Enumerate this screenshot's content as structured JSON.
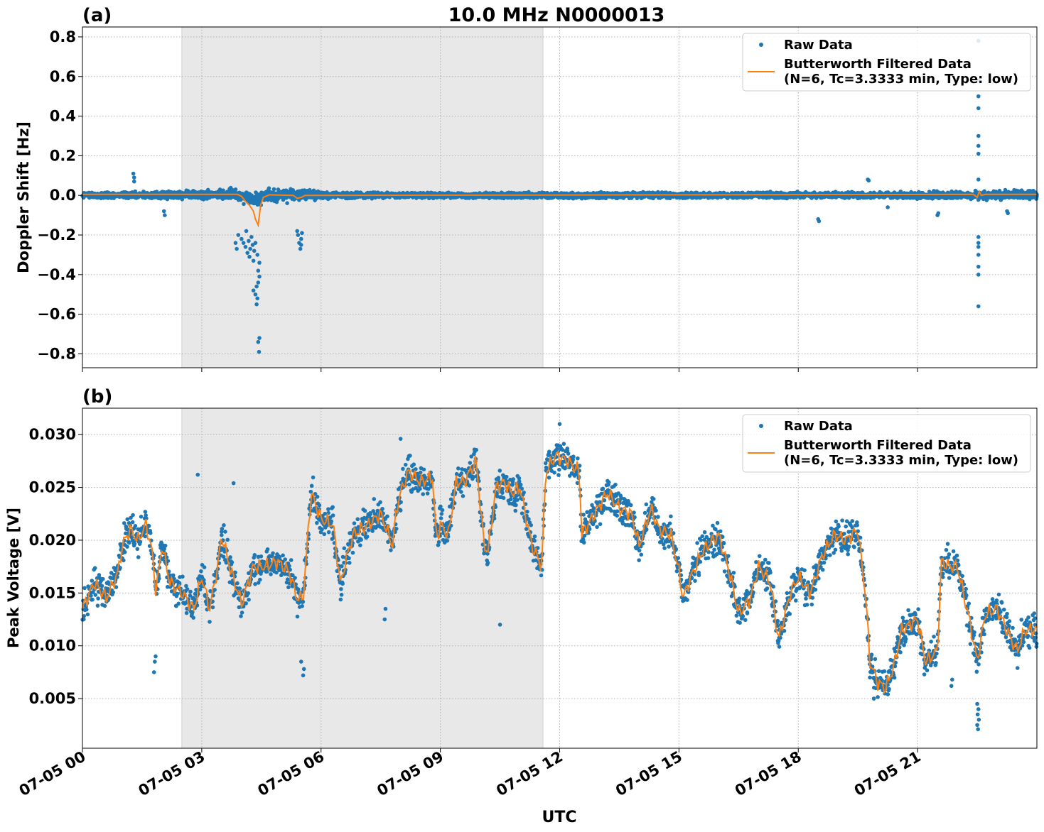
{
  "title": "10.0 MHz N0000013",
  "xlabel": "UTC",
  "x_ticks": [
    "07-05 00",
    "07-05 03",
    "07-05 06",
    "07-05 09",
    "07-05 12",
    "07-05 15",
    "07-05 18",
    "07-05 21"
  ],
  "x_tick_hours": [
    0,
    3,
    6,
    9,
    12,
    15,
    18,
    21
  ],
  "shaded_interval_hours": [
    2.5,
    11.58
  ],
  "colors": {
    "raw": "#1f77b4",
    "filtered": "#ff7f0e",
    "shade": "#e8e8e8",
    "grid": "#b0b0b0"
  },
  "legend": {
    "raw_label": "Raw Data",
    "filtered_label_line1": "Butterworth Filtered Data",
    "filtered_label_line2": "(N=6, Tc=3.3333 min, Type: low)"
  },
  "chart_data": [
    {
      "panel": "(a)",
      "type": "scatter",
      "ylabel": "Doppler Shift [Hz]",
      "xlim_hours": [
        0,
        24
      ],
      "ylim": [
        -0.87,
        0.85
      ],
      "y_ticks": [
        "0.8",
        "0.6",
        "0.4",
        "0.2",
        "0.0",
        "−0.2",
        "−0.4",
        "−0.6",
        "−0.8"
      ],
      "y_tick_values": [
        0.8,
        0.6,
        0.4,
        0.2,
        0.0,
        -0.2,
        -0.4,
        -0.6,
        -0.8
      ],
      "legend_placement": "upper-right",
      "grid": true,
      "band_envelope": {
        "x_hours": [
          0,
          1,
          2,
          2.5,
          3,
          3.5,
          4,
          4.5,
          5,
          5.5,
          6,
          7,
          8,
          9,
          10,
          11,
          11.5,
          12,
          13,
          14,
          15,
          16,
          17,
          18,
          19,
          20,
          21,
          22,
          23,
          24
        ],
        "upper": [
          0.02,
          0.02,
          0.025,
          0.04,
          0.04,
          0.04,
          0.045,
          0.05,
          0.05,
          0.05,
          0.03,
          0.02,
          0.02,
          0.015,
          0.015,
          0.02,
          0.02,
          0.02,
          0.02,
          0.02,
          0.015,
          0.015,
          0.02,
          0.02,
          0.02,
          0.02,
          0.025,
          0.03,
          0.03,
          0.04
        ],
        "lower": [
          -0.02,
          -0.02,
          -0.025,
          -0.03,
          -0.035,
          -0.035,
          -0.04,
          -0.05,
          -0.05,
          -0.04,
          -0.025,
          -0.02,
          -0.015,
          -0.015,
          -0.015,
          -0.02,
          -0.02,
          -0.02,
          -0.02,
          -0.015,
          -0.015,
          -0.015,
          -0.02,
          -0.02,
          -0.02,
          -0.02,
          -0.025,
          -0.03,
          -0.03,
          -0.03
        ]
      },
      "outliers": [
        {
          "x": 1.28,
          "y": 0.11
        },
        {
          "x": 1.3,
          "y": 0.09
        },
        {
          "x": 1.3,
          "y": 0.07
        },
        {
          "x": 2.05,
          "y": -0.08
        },
        {
          "x": 2.07,
          "y": -0.1
        },
        {
          "x": 3.85,
          "y": -0.24
        },
        {
          "x": 3.88,
          "y": -0.27
        },
        {
          "x": 3.92,
          "y": -0.2
        },
        {
          "x": 4.0,
          "y": -0.22
        },
        {
          "x": 4.05,
          "y": -0.24
        },
        {
          "x": 4.1,
          "y": -0.26
        },
        {
          "x": 4.12,
          "y": -0.18
        },
        {
          "x": 4.15,
          "y": -0.29
        },
        {
          "x": 4.18,
          "y": -0.23
        },
        {
          "x": 4.2,
          "y": -0.31
        },
        {
          "x": 4.22,
          "y": -0.27
        },
        {
          "x": 4.25,
          "y": -0.21
        },
        {
          "x": 4.28,
          "y": -0.25
        },
        {
          "x": 4.3,
          "y": -0.33
        },
        {
          "x": 4.32,
          "y": -0.28
        },
        {
          "x": 4.35,
          "y": -0.24
        },
        {
          "x": 4.3,
          "y": -0.48
        },
        {
          "x": 4.35,
          "y": -0.5
        },
        {
          "x": 4.38,
          "y": -0.46
        },
        {
          "x": 4.4,
          "y": -0.52
        },
        {
          "x": 4.42,
          "y": -0.44
        },
        {
          "x": 4.42,
          "y": -0.38
        },
        {
          "x": 4.45,
          "y": -0.41
        },
        {
          "x": 4.45,
          "y": -0.72
        },
        {
          "x": 4.42,
          "y": -0.74
        },
        {
          "x": 4.44,
          "y": -0.79
        },
        {
          "x": 4.38,
          "y": -0.55
        },
        {
          "x": 4.4,
          "y": -0.3
        },
        {
          "x": 4.45,
          "y": -0.34
        },
        {
          "x": 5.4,
          "y": -0.18
        },
        {
          "x": 5.42,
          "y": -0.2
        },
        {
          "x": 5.45,
          "y": -0.24
        },
        {
          "x": 5.5,
          "y": -0.22
        },
        {
          "x": 5.48,
          "y": -0.27
        },
        {
          "x": 5.52,
          "y": -0.19
        },
        {
          "x": 5.5,
          "y": -0.25
        },
        {
          "x": 18.5,
          "y": -0.12
        },
        {
          "x": 18.52,
          "y": -0.13
        },
        {
          "x": 19.75,
          "y": 0.08
        },
        {
          "x": 19.77,
          "y": 0.075
        },
        {
          "x": 20.25,
          "y": -0.06
        },
        {
          "x": 21.5,
          "y": -0.1
        },
        {
          "x": 21.52,
          "y": -0.09
        },
        {
          "x": 22.53,
          "y": 0.78
        },
        {
          "x": 22.53,
          "y": 0.58
        },
        {
          "x": 22.53,
          "y": 0.5
        },
        {
          "x": 22.53,
          "y": 0.44
        },
        {
          "x": 22.53,
          "y": 0.3
        },
        {
          "x": 22.53,
          "y": 0.25
        },
        {
          "x": 22.53,
          "y": 0.21
        },
        {
          "x": 22.53,
          "y": 0.08
        },
        {
          "x": 22.53,
          "y": -0.21
        },
        {
          "x": 22.53,
          "y": -0.24
        },
        {
          "x": 22.53,
          "y": -0.26
        },
        {
          "x": 22.53,
          "y": -0.3
        },
        {
          "x": 22.53,
          "y": -0.36
        },
        {
          "x": 22.53,
          "y": -0.4
        },
        {
          "x": 22.53,
          "y": -0.56
        },
        {
          "x": 23.25,
          "y": -0.08
        },
        {
          "x": 23.27,
          "y": -0.09
        }
      ],
      "filtered_line": {
        "x_hours": [
          0,
          3.9,
          4.0,
          4.1,
          4.2,
          4.3,
          4.35,
          4.42,
          4.48,
          4.55,
          4.7,
          5.3,
          5.4,
          5.5,
          5.6,
          22.4,
          22.5,
          22.55,
          22.6,
          22.7,
          24
        ],
        "y": [
          0.005,
          0.005,
          -0.005,
          -0.03,
          -0.05,
          -0.08,
          -0.12,
          -0.15,
          -0.05,
          -0.01,
          0.003,
          0.0,
          -0.015,
          -0.01,
          0.0,
          0.005,
          -0.01,
          0.02,
          0.0,
          0.005,
          0.005
        ]
      }
    },
    {
      "panel": "(b)",
      "type": "scatter",
      "ylabel": "Peak Voltage [V]",
      "xlim_hours": [
        0,
        24
      ],
      "ylim": [
        0.0003,
        0.0325
      ],
      "y_ticks": [
        "0.030",
        "0.025",
        "0.020",
        "0.015",
        "0.010",
        "0.005"
      ],
      "y_tick_values": [
        0.03,
        0.025,
        0.02,
        0.015,
        0.01,
        0.005
      ],
      "legend_placement": "upper-right",
      "grid": true,
      "spread": 0.0022,
      "filtered_line": {
        "x_hours": [
          0,
          0.3,
          0.6,
          0.9,
          1.0,
          1.2,
          1.4,
          1.6,
          1.75,
          1.85,
          2.0,
          2.2,
          2.5,
          2.8,
          3.0,
          3.2,
          3.4,
          3.5,
          3.7,
          4.0,
          4.3,
          4.6,
          4.9,
          5.2,
          5.4,
          5.55,
          5.75,
          6.0,
          6.3,
          6.5,
          6.55,
          6.8,
          7.2,
          7.5,
          7.8,
          7.9,
          8.0,
          8.2,
          8.5,
          8.8,
          8.9,
          9.0,
          9.2,
          9.4,
          9.6,
          9.9,
          10.1,
          10.2,
          10.4,
          10.6,
          10.8,
          11.0,
          11.3,
          11.55,
          11.65,
          11.9,
          12.2,
          12.5,
          12.55,
          12.8,
          13.2,
          13.5,
          13.8,
          14.0,
          14.3,
          14.5,
          14.8,
          15.0,
          15.1,
          15.3,
          15.6,
          16.0,
          16.3,
          16.5,
          16.8,
          17.0,
          17.3,
          17.5,
          17.8,
          18.0,
          18.3,
          18.6,
          18.9,
          19.2,
          19.5,
          19.7,
          19.8,
          20.0,
          20.2,
          20.4,
          20.6,
          20.8,
          21.0,
          21.2,
          21.5,
          21.6,
          21.8,
          22.0,
          22.3,
          22.5,
          22.7,
          23.0,
          23.3,
          23.5,
          23.7,
          24.0
        ],
        "y": [
          0.0135,
          0.016,
          0.0145,
          0.017,
          0.0195,
          0.021,
          0.02,
          0.0215,
          0.019,
          0.015,
          0.0195,
          0.016,
          0.015,
          0.0135,
          0.0165,
          0.0135,
          0.0175,
          0.0205,
          0.0175,
          0.014,
          0.0175,
          0.0175,
          0.018,
          0.017,
          0.0145,
          0.0145,
          0.0245,
          0.022,
          0.0215,
          0.0155,
          0.017,
          0.0205,
          0.0215,
          0.0225,
          0.0195,
          0.023,
          0.0245,
          0.0265,
          0.0255,
          0.026,
          0.02,
          0.0215,
          0.0205,
          0.0255,
          0.0255,
          0.0275,
          0.0195,
          0.019,
          0.025,
          0.0255,
          0.0245,
          0.025,
          0.0195,
          0.0175,
          0.0265,
          0.028,
          0.0275,
          0.0265,
          0.0205,
          0.022,
          0.0245,
          0.023,
          0.0225,
          0.0195,
          0.023,
          0.021,
          0.0205,
          0.017,
          0.0145,
          0.0165,
          0.019,
          0.0205,
          0.0165,
          0.013,
          0.0145,
          0.0175,
          0.016,
          0.0105,
          0.015,
          0.0165,
          0.015,
          0.0185,
          0.0205,
          0.02,
          0.021,
          0.0145,
          0.0085,
          0.0065,
          0.006,
          0.008,
          0.0115,
          0.012,
          0.0125,
          0.0085,
          0.0095,
          0.018,
          0.0175,
          0.0175,
          0.0125,
          0.0085,
          0.013,
          0.0135,
          0.011,
          0.0095,
          0.0115,
          0.0115
        ]
      },
      "outliers": [
        {
          "x": 1.8,
          "y": 0.0075
        },
        {
          "x": 1.82,
          "y": 0.0085
        },
        {
          "x": 1.84,
          "y": 0.009
        },
        {
          "x": 5.55,
          "y": 0.0072
        },
        {
          "x": 5.57,
          "y": 0.0078
        },
        {
          "x": 5.5,
          "y": 0.0085
        },
        {
          "x": 7.6,
          "y": 0.0125
        },
        {
          "x": 7.62,
          "y": 0.0135
        },
        {
          "x": 10.5,
          "y": 0.012
        },
        {
          "x": 19.9,
          "y": 0.005
        },
        {
          "x": 21.85,
          "y": 0.0062
        },
        {
          "x": 21.87,
          "y": 0.0068
        },
        {
          "x": 22.5,
          "y": 0.0025
        },
        {
          "x": 22.52,
          "y": 0.0021
        },
        {
          "x": 22.54,
          "y": 0.003
        },
        {
          "x": 22.51,
          "y": 0.0035
        },
        {
          "x": 22.53,
          "y": 0.004
        },
        {
          "x": 22.5,
          "y": 0.0045
        },
        {
          "x": 2.9,
          "y": 0.0262
        },
        {
          "x": 3.8,
          "y": 0.0254
        },
        {
          "x": 8.0,
          "y": 0.0296
        },
        {
          "x": 12.0,
          "y": 0.031
        }
      ]
    }
  ]
}
